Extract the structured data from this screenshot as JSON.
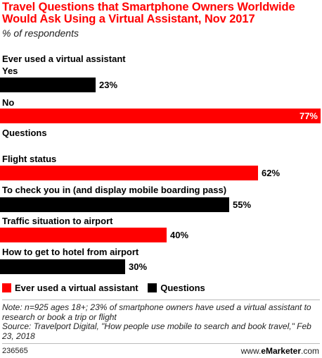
{
  "header": {
    "title": "Travel Questions that Smartphone Owners Worldwide Would Ask Using a Virtual Assistant, Nov 2017",
    "subtitle": "% of respondents"
  },
  "sections": {
    "group1": "Ever used a virtual assistant",
    "group2": "Questions"
  },
  "chart_data": {
    "type": "bar",
    "orientation": "horizontal",
    "value_suffix": "%",
    "colors": {
      "Ever used a virtual assistant": "#ff0000",
      "Questions": "#000000"
    },
    "categories": [
      "Yes",
      "No",
      "Flight status",
      "To check you in (and display mobile boarding pass)",
      "Traffic situation to airport",
      "How to get to hotel from airport"
    ],
    "values": [
      23,
      77,
      62,
      55,
      40,
      30
    ],
    "bar_colors": [
      "#000000",
      "#ff0000",
      "#ff0000",
      "#000000",
      "#ff0000",
      "#000000"
    ],
    "legend": [
      {
        "name": "Ever used a virtual assistant",
        "color": "#ff0000"
      },
      {
        "name": "Questions",
        "color": "#000000"
      }
    ],
    "legend_position": "bottom",
    "xlim": [
      0,
      77
    ],
    "grid": false
  },
  "notes": {
    "note": "Note: n=925 ages 18+; 23% of smartphone owners have used a virtual assistant to research or book a trip or flight",
    "source": "Source: Travelport Digital, \"How people use mobile to search and book travel,\" Feb 23, 2018"
  },
  "footer": {
    "chart_id": "236565",
    "brand_prefix": "www.",
    "brand_name": "eMarketer",
    "brand_suffix": ".com"
  }
}
